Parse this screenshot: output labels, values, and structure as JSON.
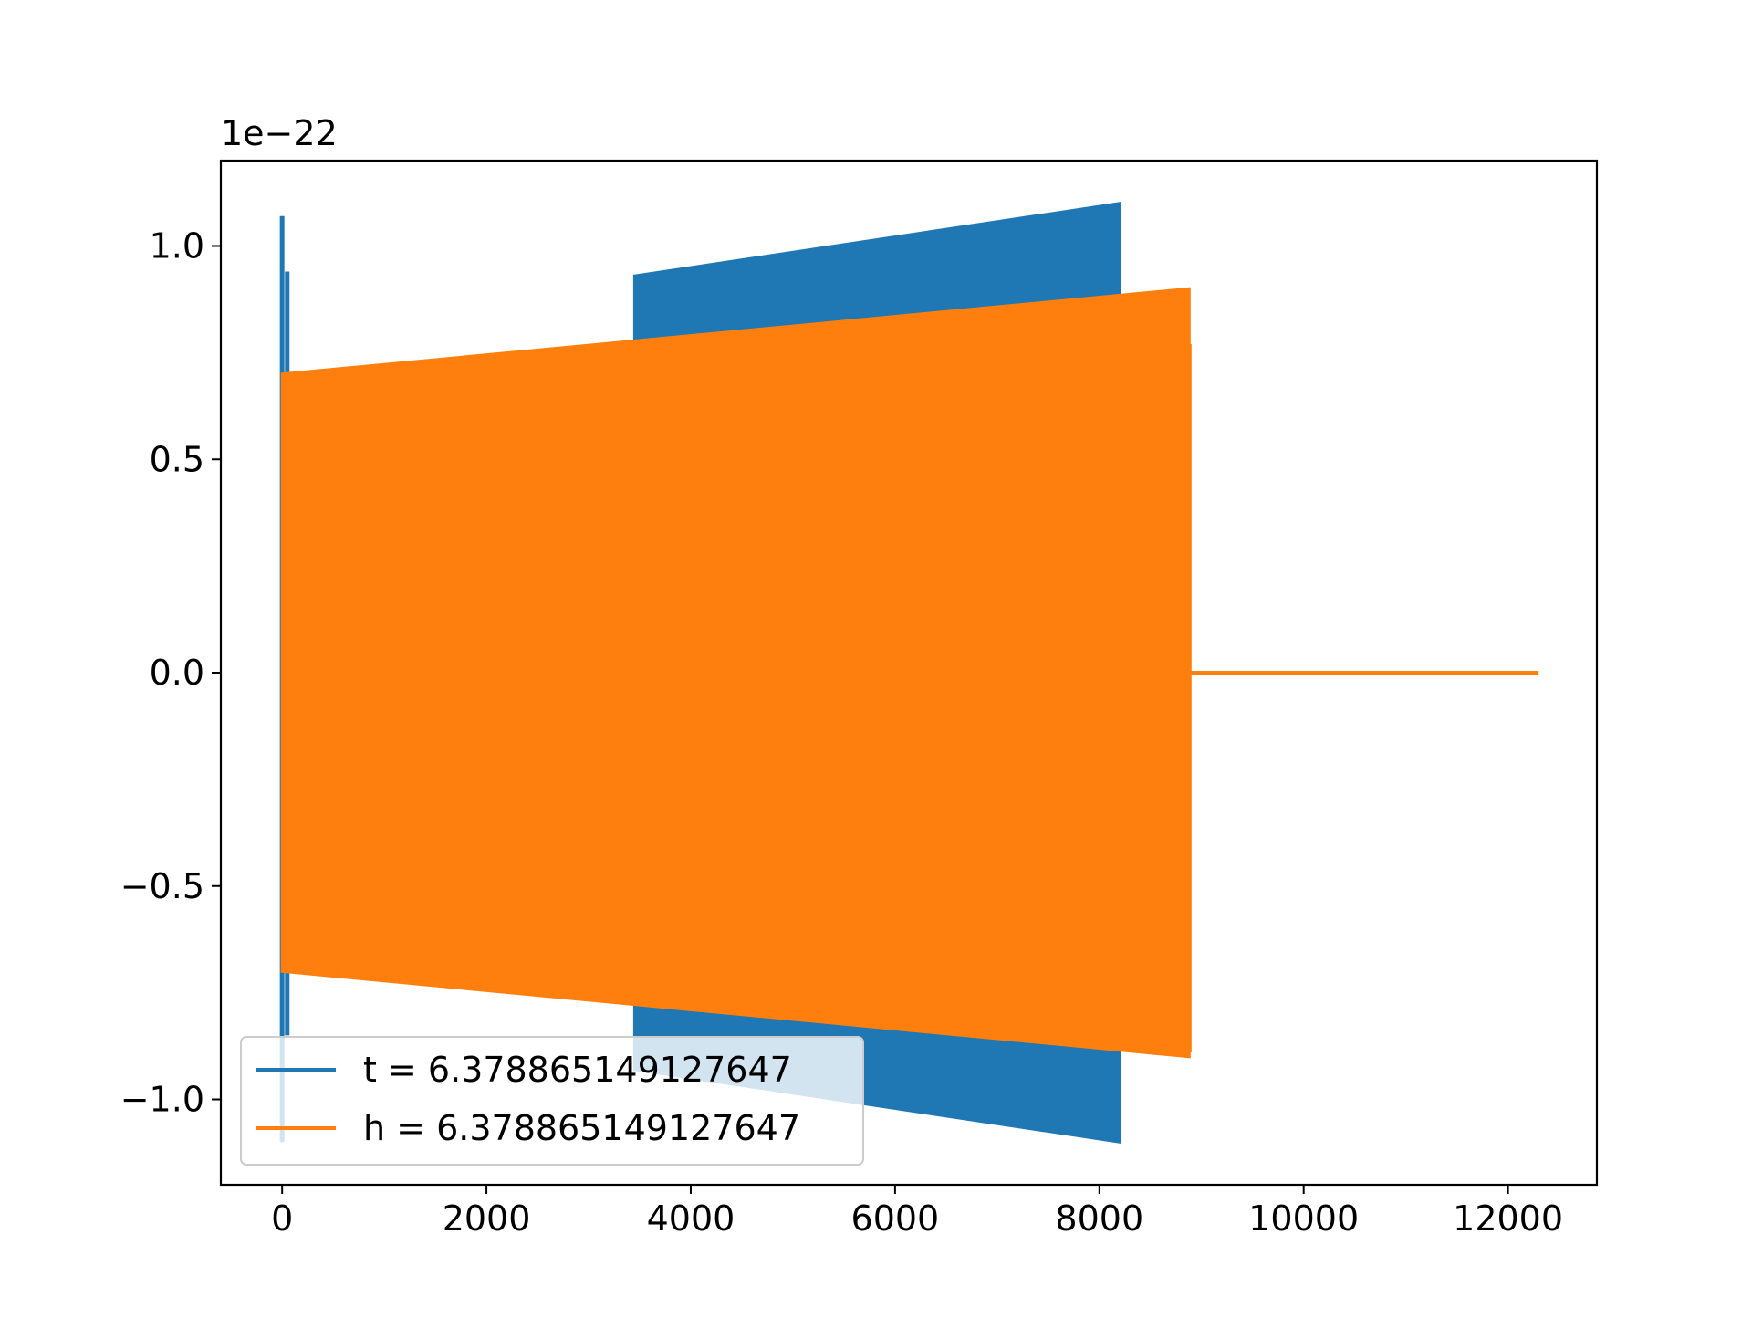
{
  "chart_data": {
    "type": "line",
    "title": "",
    "xlabel": "",
    "ylabel": "",
    "offset_text": "1e−22",
    "xlim": [
      -600,
      12870
    ],
    "ylim": [
      -1.2,
      1.2
    ],
    "xticks": [
      0,
      2000,
      4000,
      6000,
      8000,
      10000,
      12000
    ],
    "xtick_labels": [
      "0",
      "2000",
      "4000",
      "6000",
      "8000",
      "10000",
      "12000"
    ],
    "yticks": [
      1.0,
      0.5,
      0.0,
      -0.5,
      -1.0
    ],
    "ytick_labels": [
      "1.0",
      "0.5",
      "0.0",
      "−0.5",
      "−1.0"
    ],
    "grid": false,
    "legend_position": "lower-left",
    "series": [
      {
        "name": "t = 6.378865149127647",
        "color": "#1f77b4",
        "description_envelope": true,
        "spikes": [
          {
            "x": 0,
            "ymax": 1.07,
            "ymin": -1.1
          },
          {
            "x": 50,
            "ymax": 0.94,
            "ymin": -0.85
          }
        ],
        "envelope": {
          "x_start": 3450,
          "x_end": 8200,
          "amp_start": 0.93,
          "amp_end": 1.1
        }
      },
      {
        "name": "h = 6.378865149127647",
        "color": "#ff7f0e",
        "envelope": {
          "x_start": 0,
          "x_end": 8880,
          "amp_start": 0.7,
          "amp_end": 0.9
        },
        "tail_spike": {
          "x": 8880,
          "ymax": 0.77,
          "ymin": -0.89
        },
        "flat": {
          "x_start": 8880,
          "x_end": 12300,
          "y": 0.0
        }
      }
    ]
  }
}
